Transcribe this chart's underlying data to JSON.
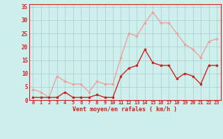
{
  "hours": [
    0,
    1,
    2,
    3,
    4,
    5,
    6,
    7,
    8,
    9,
    10,
    11,
    12,
    13,
    14,
    15,
    16,
    17,
    18,
    19,
    20,
    21,
    22,
    23
  ],
  "wind_avg": [
    1,
    1,
    1,
    1,
    3,
    1,
    1,
    1,
    2,
    1,
    1,
    9,
    12,
    13,
    19,
    14,
    13,
    13,
    8,
    10,
    9,
    6,
    13,
    13
  ],
  "wind_gust": [
    4,
    3,
    1,
    9,
    7,
    6,
    6,
    3,
    7,
    6,
    6,
    16,
    25,
    24,
    29,
    33,
    29,
    29,
    25,
    21,
    19,
    16,
    22,
    23
  ],
  "avg_color": "#cc2222",
  "gust_color": "#f0a0a0",
  "bg_color": "#cef0ec",
  "grid_color": "#aacaca",
  "axis_color": "#cc2222",
  "xlabel": "Vent moyen/en rafales ( km/h )",
  "ylim": [
    0,
    36
  ],
  "yticks": [
    0,
    5,
    10,
    15,
    20,
    25,
    30,
    35
  ],
  "xlim": [
    -0.5,
    23.5
  ]
}
